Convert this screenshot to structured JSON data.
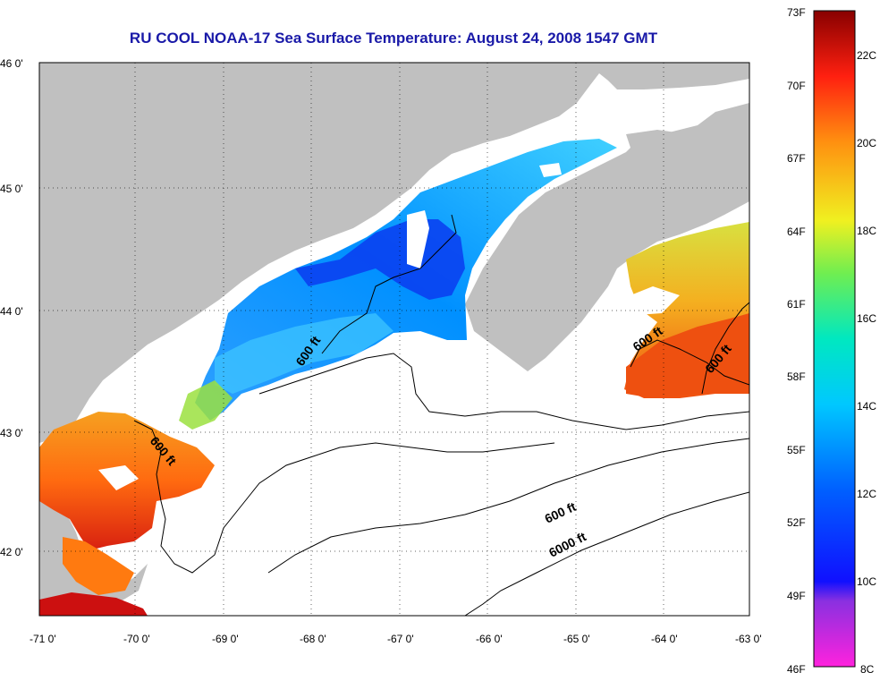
{
  "title": "RU COOL  NOAA-17  Sea Surface Temperature:  August 24, 2008 1547 GMT",
  "lat_ticks": [
    "46 0'",
    "45 0'",
    "44 0'",
    "43 0'",
    "42 0'"
  ],
  "lon_ticks": [
    "-71 0'",
    "-70 0'",
    "-69 0'",
    "-68 0'",
    "-67 0'",
    "-66 0'",
    "-65 0'",
    "-64 0'",
    "-63 0'"
  ],
  "colorbar": {
    "fahrenheit": [
      "73F",
      "70F",
      "67F",
      "64F",
      "61F",
      "58F",
      "55F",
      "52F",
      "49F",
      "46F"
    ],
    "celsius": [
      "22C",
      "20C",
      "18C",
      "16C",
      "14C",
      "12C",
      "10C",
      "8C"
    ]
  },
  "contour_labels": [
    "600 ft",
    "600 ft",
    "600 ft",
    "600 ft",
    "600 ft",
    "6000 ft"
  ],
  "colors": {
    "land": "#c0c0c0",
    "title": "#1a1aa8",
    "cloud": "#ffffff"
  }
}
